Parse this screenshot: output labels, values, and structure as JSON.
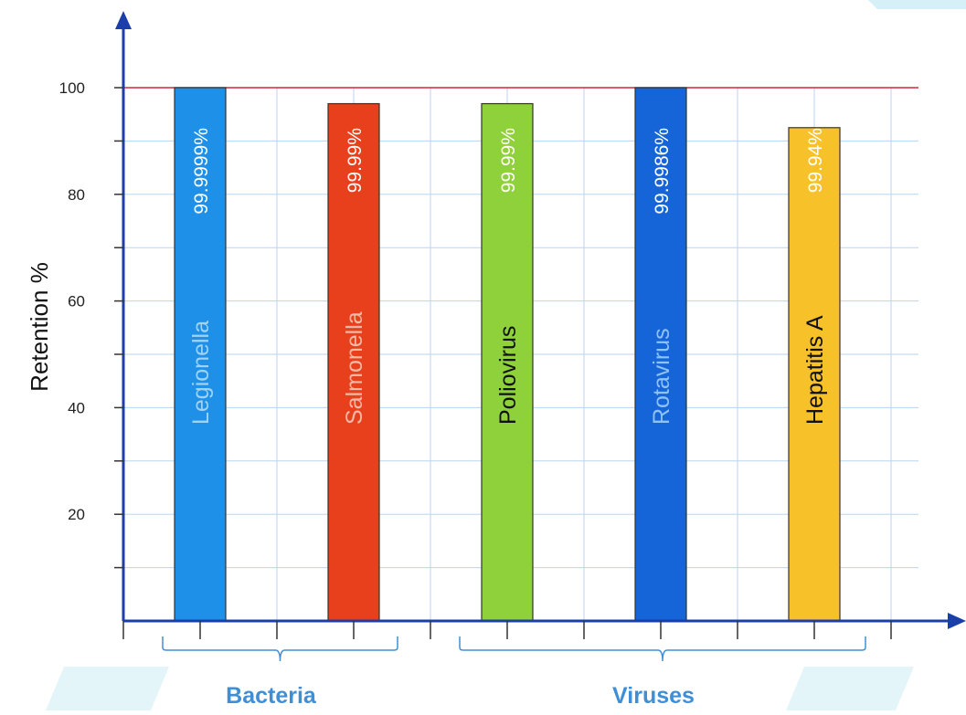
{
  "chart_data": {
    "type": "bar",
    "title": "",
    "xlabel": "",
    "ylabel": "Retention %",
    "ylim": [
      0,
      100
    ],
    "yticks": [
      20,
      40,
      60,
      80,
      100
    ],
    "grid": true,
    "reference_line": {
      "value": 100,
      "color": "#d7263d"
    },
    "categories": [
      "Legionella",
      "Salmonella",
      "Poliovirus",
      "Rotavirus",
      "Hepatitis A"
    ],
    "values": [
      99.9999,
      99.99,
      99.99,
      99.9986,
      99.94
    ],
    "bar_display_values": [
      100,
      97,
      97,
      100,
      92.5
    ],
    "value_labels": [
      "99.9999%",
      "99.99%",
      "99.99%",
      "99.9986%",
      "99.94%"
    ],
    "bar_colors": [
      "#1e90e8",
      "#e8401c",
      "#8fd13a",
      "#1565d8",
      "#f7c12a"
    ],
    "name_colors": [
      "#9fd3f5",
      "#f5b9a6",
      "#111111",
      "#8fc2f5",
      "#111111"
    ],
    "value_colors": [
      "#ffffff",
      "#ffffff",
      "#ffffff",
      "#ffffff",
      "#ffffff"
    ],
    "groups": [
      {
        "label": "Bacteria",
        "members": [
          "Legionella",
          "Salmonella"
        ]
      },
      {
        "label": "Viruses",
        "members": [
          "Poliovirus",
          "Rotavirus",
          "Hepatitis A"
        ]
      }
    ],
    "colors": {
      "axis": "#1a3fa8",
      "grid": "#b9d6f2",
      "group": "#3e8fd6"
    }
  }
}
